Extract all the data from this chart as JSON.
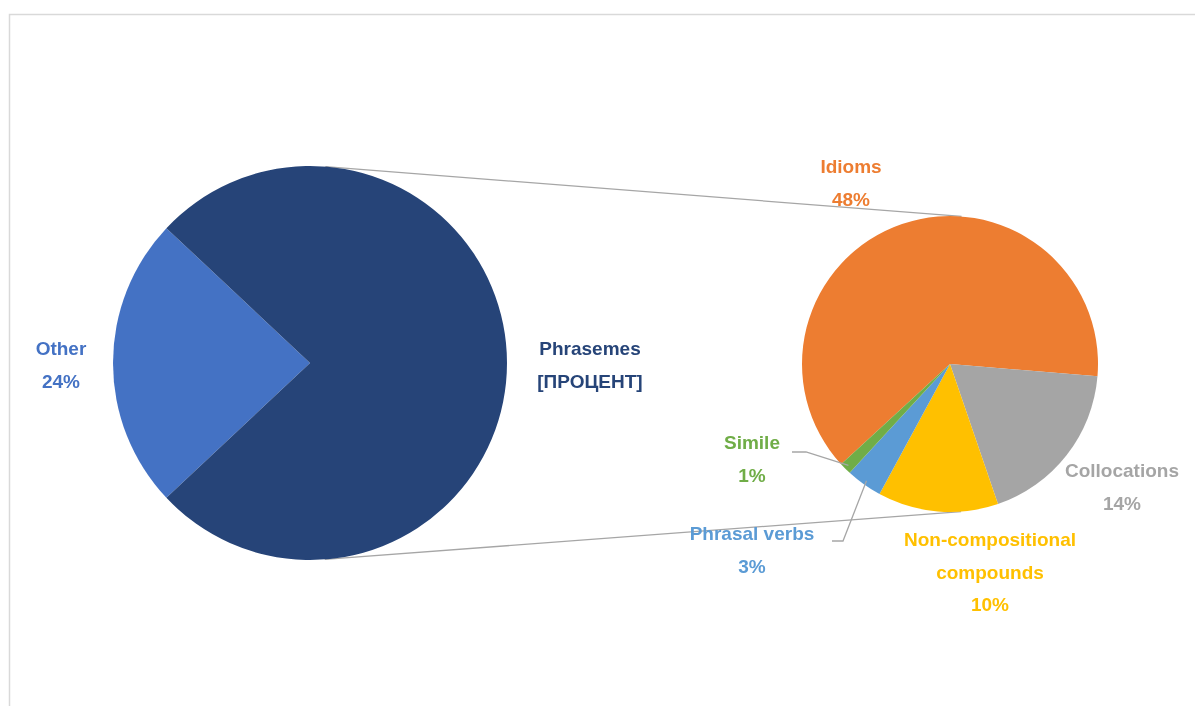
{
  "chart_data": [
    {
      "type": "pie",
      "categories": [
        "Other",
        "Phrasemes"
      ],
      "values": [
        24,
        76
      ],
      "colors": [
        "#4472c4",
        "#264478"
      ],
      "value_labels": [
        "24%",
        "[ПРОЦЕНТ]"
      ]
    },
    {
      "type": "pie",
      "categories": [
        "Idioms",
        "Collocations",
        "Non-compositional compounds",
        "Phrasal verbs",
        "Simile"
      ],
      "values": [
        48,
        14,
        10,
        3,
        1
      ],
      "colors": [
        "#ed7d31",
        "#a5a5a5",
        "#ffc000",
        "#5b9bd5",
        "#70ad47"
      ],
      "value_labels": [
        "48%",
        "14%",
        "10%",
        "3%",
        "1%"
      ]
    }
  ]
}
